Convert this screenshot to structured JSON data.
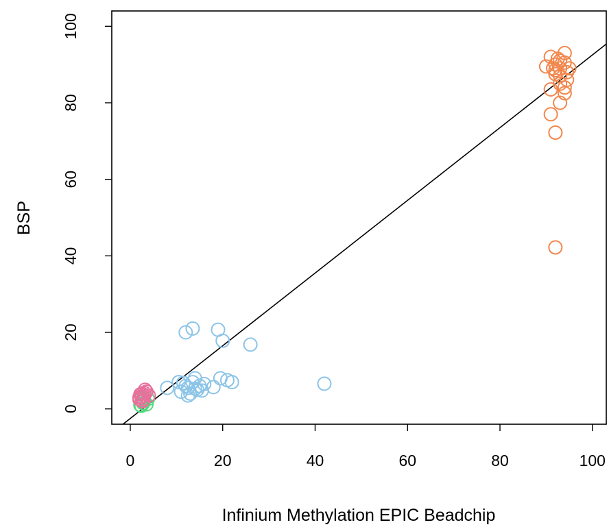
{
  "chart_data": {
    "type": "scatter",
    "title": "",
    "xlabel": "Infinium Methylation EPIC Beadchip",
    "ylabel": "BSP",
    "xlim": [
      -4,
      103
    ],
    "ylim": [
      -4,
      104
    ],
    "xticks": [
      0,
      20,
      40,
      60,
      80,
      100
    ],
    "yticks": [
      0,
      20,
      40,
      60,
      80,
      100
    ],
    "grid": false,
    "legend": "none",
    "marker": "open-circle",
    "reference_line": {
      "intercept": -2.5,
      "slope": 0.95,
      "color": "#000000"
    },
    "series": [
      {
        "color": "#F2874D",
        "points": [
          [
            91,
            92
          ],
          [
            92,
            90
          ],
          [
            93,
            91
          ],
          [
            94,
            93
          ],
          [
            90,
            89.5
          ],
          [
            91.5,
            89
          ],
          [
            94,
            90.5
          ],
          [
            93,
            89
          ],
          [
            95,
            89
          ],
          [
            92,
            87.5
          ],
          [
            93,
            87
          ],
          [
            94.5,
            86
          ],
          [
            93,
            85
          ],
          [
            94,
            84
          ],
          [
            94,
            82.5
          ],
          [
            91,
            83.5
          ],
          [
            93,
            80
          ],
          [
            91,
            77
          ],
          [
            92,
            72.2
          ],
          [
            92,
            42.2
          ],
          [
            92.5,
            91.5
          ],
          [
            94.5,
            88
          ],
          [
            92,
            88.5
          ]
        ]
      },
      {
        "color": "#8CC4E8",
        "points": [
          [
            12,
            20
          ],
          [
            13.5,
            21
          ],
          [
            19,
            20.7
          ],
          [
            20,
            17.8
          ],
          [
            26,
            16.8
          ],
          [
            42,
            6.6
          ],
          [
            8,
            5.5
          ],
          [
            10.5,
            7
          ],
          [
            11,
            4.5
          ],
          [
            12,
            6
          ],
          [
            12.5,
            5.5
          ],
          [
            13,
            4
          ],
          [
            13.5,
            7
          ],
          [
            14,
            8
          ],
          [
            14.5,
            5
          ],
          [
            15,
            6
          ],
          [
            15.5,
            4.8
          ],
          [
            16,
            6.5
          ],
          [
            12.5,
            3.5
          ],
          [
            18,
            5.7
          ],
          [
            19.5,
            8
          ],
          [
            21,
            7.5
          ],
          [
            22,
            7
          ],
          [
            11.5,
            6.8
          ],
          [
            14,
            5.3
          ]
        ]
      },
      {
        "color": "#4FDB7A",
        "points": [
          [
            2.2,
            1
          ],
          [
            2.8,
            1.5
          ],
          [
            3.5,
            1.2
          ],
          [
            3,
            2.2
          ],
          [
            2.5,
            2.8
          ],
          [
            3.8,
            2.6
          ],
          [
            2.4,
            0.8
          ]
        ]
      },
      {
        "color": "#E8709C",
        "points": [
          [
            2,
            3
          ],
          [
            2.5,
            4
          ],
          [
            3,
            3.5
          ],
          [
            3.5,
            4.5
          ],
          [
            2.8,
            2.5
          ],
          [
            2.2,
            3.8
          ],
          [
            3.2,
            5
          ],
          [
            2.6,
            2
          ],
          [
            4,
            3.5
          ],
          [
            2,
            2.5
          ],
          [
            3,
            4.2
          ],
          [
            2.4,
            3.2
          ]
        ]
      }
    ]
  }
}
